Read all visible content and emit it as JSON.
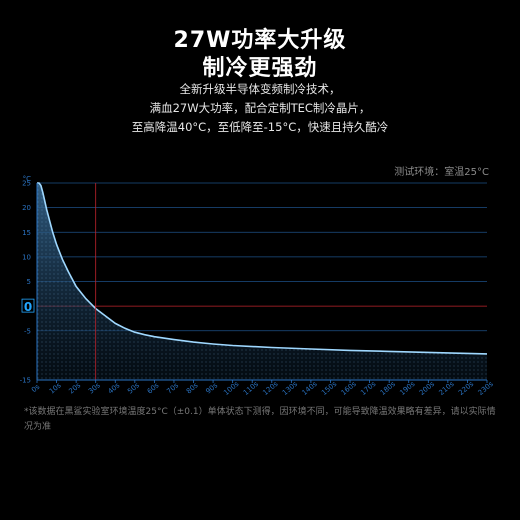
{
  "header": {
    "title_line1": "27W功率大升级",
    "title_line2": "制冷更强劲",
    "desc_line1": "全新升级半导体变频制冷技术，",
    "desc_line2": "满血27W大功率，配合定制TEC制冷晶片，",
    "desc_line3": "至高降温40°C，至低降至-15°C，快速且持久酷冷"
  },
  "env_note": "测试环境：室温25°C",
  "footnote": "*该数据在黑鲨实验室环境温度25°C（±0.1）单体状态下测得，因环境不同，可能导致降温效果略有差异，请以实际情况为准",
  "colors": {
    "axis": "#2a73c2",
    "grid": "#1d4f86",
    "curve": "#9fd8ff",
    "zero_marker": "#c0242c"
  },
  "chart_data": {
    "type": "area",
    "y_unit": "°C",
    "ylim": [
      -15,
      25
    ],
    "yticks": [
      25,
      20,
      15,
      10,
      5,
      0,
      -5,
      -15
    ],
    "xlim": [
      0,
      230
    ],
    "xticks": [
      "0s",
      "10s",
      "20s",
      "30s",
      "40s",
      "50s",
      "60s",
      "70s",
      "80s",
      "90s",
      "100s",
      "110s",
      "120s",
      "130s",
      "140s",
      "150s",
      "160s",
      "170s",
      "180s",
      "190s",
      "200s",
      "210s",
      "220s",
      "230s"
    ],
    "x": [
      0,
      1,
      2,
      3,
      5,
      8,
      10,
      13,
      16,
      20,
      25,
      30,
      35,
      40,
      45,
      50,
      55,
      60,
      70,
      80,
      90,
      100,
      120,
      140,
      160,
      180,
      200,
      220,
      230
    ],
    "y": [
      25,
      25,
      24.5,
      23,
      19.5,
      15,
      12.5,
      9.5,
      7,
      4,
      1.5,
      -0.5,
      -2,
      -3.5,
      -4.5,
      -5.3,
      -5.8,
      -6.2,
      -6.8,
      -7.3,
      -7.7,
      -8,
      -8.4,
      -8.7,
      -9,
      -9.2,
      -9.4,
      -9.6,
      -9.7
    ],
    "grid": true,
    "zero_crossing_x": 30,
    "zero_label": "0"
  }
}
